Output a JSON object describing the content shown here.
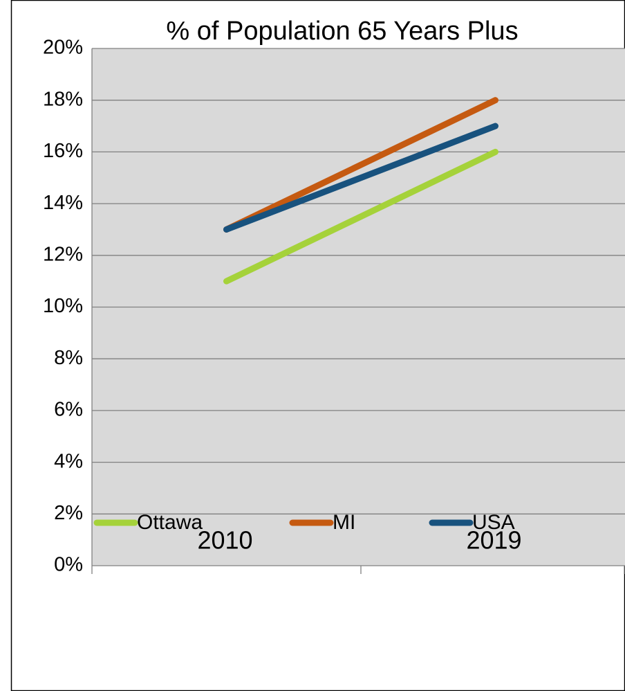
{
  "chart_data": {
    "type": "line",
    "title": "% of Population 65 Years Plus",
    "categories": [
      "2010",
      "2019"
    ],
    "series": [
      {
        "name": "Ottawa",
        "color": "#a5d23a",
        "values": [
          11,
          16
        ]
      },
      {
        "name": "MI",
        "color": "#c55a11",
        "values": [
          13,
          18
        ]
      },
      {
        "name": "USA",
        "color": "#18527e",
        "values": [
          13,
          17
        ]
      }
    ],
    "ylim": [
      0,
      20
    ],
    "yticks": [
      {
        "value": 0,
        "label": "0%"
      },
      {
        "value": 2,
        "label": "2%"
      },
      {
        "value": 4,
        "label": "4%"
      },
      {
        "value": 6,
        "label": "6%"
      },
      {
        "value": 8,
        "label": "8%"
      },
      {
        "value": 10,
        "label": "10%"
      },
      {
        "value": 12,
        "label": "12%"
      },
      {
        "value": 14,
        "label": "14%"
      },
      {
        "value": 16,
        "label": "16%"
      },
      {
        "value": 18,
        "label": "18%"
      },
      {
        "value": 20,
        "label": "20%"
      }
    ],
    "grid": true,
    "legend": "bottom"
  }
}
